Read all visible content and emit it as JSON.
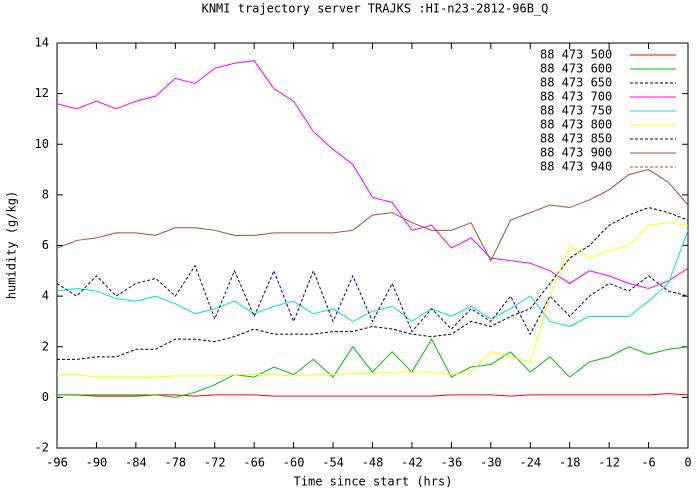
{
  "chart_data": {
    "type": "line",
    "title": "KNMI trajectory server TRAJKS :HI-n23-2812-96B_Q",
    "x_label": "Time since start (hrs)",
    "y_label": "humidity (g/kg)",
    "xlim": [
      -96,
      0
    ],
    "ylim": [
      -2,
      14
    ],
    "xticks": [
      -96,
      -90,
      -84,
      -78,
      -72,
      -66,
      -60,
      -54,
      -48,
      -42,
      -36,
      -30,
      -24,
      -18,
      -12,
      -6,
      0
    ],
    "yticks": [
      -2,
      0,
      2,
      4,
      6,
      8,
      10,
      12,
      14
    ],
    "legend": "top-right",
    "x": [
      -96,
      -93,
      -90,
      -87,
      -84,
      -81,
      -78,
      -75,
      -72,
      -69,
      -66,
      -63,
      -60,
      -57,
      -54,
      -51,
      -48,
      -45,
      -42,
      -39,
      -36,
      -33,
      -30,
      -27,
      -24,
      -21,
      -18,
      -15,
      -12,
      -9,
      -6,
      -3,
      0
    ],
    "series": [
      {
        "name": "88 473 500",
        "color": "#ff0000",
        "dash": false,
        "values": [
          0.1,
          0.1,
          0.05,
          0.05,
          0.05,
          0.1,
          0.1,
          0.05,
          0.1,
          0.1,
          0.1,
          0.05,
          0.05,
          0.05,
          0.05,
          0.05,
          0.05,
          0.05,
          0.05,
          0.05,
          0.1,
          0.1,
          0.1,
          0.05,
          0.1,
          0.1,
          0.1,
          0.1,
          0.1,
          0.1,
          0.1,
          0.15,
          0.1
        ]
      },
      {
        "name": "88 473 600",
        "color": "#00c000",
        "dash": false,
        "values": [
          0.1,
          0.1,
          0.1,
          0.1,
          0.1,
          0.1,
          0,
          0.2,
          0.5,
          0.9,
          0.8,
          1.2,
          0.9,
          1.5,
          0.8,
          2.0,
          1.0,
          1.8,
          1.0,
          2.3,
          0.8,
          1.2,
          1.3,
          1.8,
          1.0,
          1.6,
          0.8,
          1.4,
          1.6,
          2.0,
          1.7,
          1.9,
          2.0
        ]
      },
      {
        "name": "88 473 650",
        "color": "#000000",
        "dash": true,
        "values": [
          1.5,
          1.5,
          1.6,
          1.6,
          1.9,
          1.9,
          2.3,
          2.3,
          2.2,
          2.4,
          2.7,
          2.5,
          2.5,
          2.5,
          2.6,
          2.6,
          2.8,
          2.7,
          2.5,
          2.4,
          2.5,
          3.0,
          2.8,
          3.2,
          3.5,
          4.5,
          5.5,
          6.0,
          6.8,
          7.2,
          7.5,
          7.3,
          7.0
        ]
      },
      {
        "name": "88 473 700",
        "color": "#ff00ff",
        "dash": false,
        "values": [
          11.6,
          11.4,
          11.7,
          11.4,
          11.7,
          11.9,
          12.6,
          12.4,
          13.0,
          13.2,
          13.3,
          12.2,
          11.7,
          10.5,
          9.8,
          9.2,
          7.9,
          7.7,
          6.6,
          6.8,
          5.9,
          6.3,
          5.5,
          5.4,
          5.3,
          5.0,
          4.5,
          5.0,
          4.8,
          4.5,
          4.3,
          4.6,
          5.1
        ]
      },
      {
        "name": "88 473 750",
        "color": "#00e0e0",
        "dash": false,
        "values": [
          4.2,
          4.3,
          4.2,
          3.9,
          3.8,
          4.0,
          3.7,
          3.3,
          3.5,
          3.8,
          3.3,
          3.6,
          3.8,
          3.3,
          3.5,
          3.0,
          3.4,
          3.6,
          3.0,
          3.5,
          3.2,
          3.6,
          3.1,
          3.5,
          4.0,
          3.0,
          2.8,
          3.2,
          3.2,
          3.2,
          3.8,
          4.5,
          6.6
        ]
      },
      {
        "name": "88 473 800",
        "color": "#ffff00",
        "dash": false,
        "values": [
          0.9,
          0.9,
          0.8,
          0.8,
          0.8,
          0.8,
          0.85,
          0.85,
          0.85,
          0.9,
          0.9,
          0.9,
          0.85,
          0.9,
          0.9,
          0.95,
          0.95,
          1.0,
          1.0,
          1.0,
          0.9,
          1.0,
          1.8,
          1.6,
          1.4,
          4.0,
          6.0,
          5.5,
          5.8,
          6.0,
          6.8,
          6.9,
          6.8
        ]
      },
      {
        "name": "88 473 850",
        "color": "#000090",
        "dash": true,
        "values": [
          4.5,
          4.0,
          4.8,
          4.0,
          4.5,
          4.7,
          4.0,
          5.2,
          3.1,
          5.0,
          3.2,
          5.0,
          3.0,
          5.0,
          3.0,
          4.8,
          3.0,
          4.5,
          2.6,
          3.5,
          2.7,
          3.5,
          3.0,
          4.0,
          2.5,
          4.0,
          3.2,
          4.0,
          4.5,
          4.2,
          4.8,
          4.2,
          4.0
        ]
      },
      {
        "name": "88 473 900",
        "color": "#a0522d",
        "dash": false,
        "values": [
          5.9,
          6.2,
          6.3,
          6.5,
          6.5,
          6.4,
          6.7,
          6.7,
          6.6,
          6.4,
          6.4,
          6.5,
          6.5,
          6.5,
          6.5,
          6.6,
          7.2,
          7.3,
          6.9,
          6.6,
          6.6,
          6.9,
          5.4,
          7.0,
          7.3,
          7.6,
          7.5,
          7.8,
          8.2,
          8.8,
          9.0,
          8.5,
          7.6
        ]
      },
      {
        "name": "88 473 940",
        "color": "#906040",
        "dash": true,
        "values": [
          null,
          null,
          null,
          null,
          null,
          null,
          null,
          null,
          null,
          null,
          null,
          null,
          null,
          null,
          null,
          null,
          null,
          null,
          null,
          null,
          null,
          null,
          null,
          null,
          null,
          null,
          null,
          null,
          null,
          null,
          null,
          null,
          null
        ]
      }
    ]
  }
}
